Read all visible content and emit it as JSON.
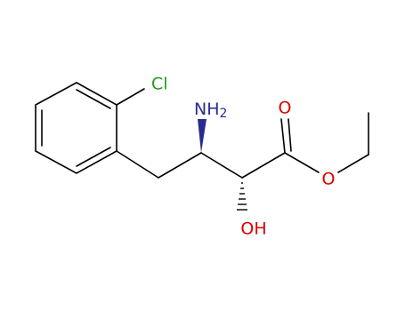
{
  "atoms": {
    "chlorine": "Cl",
    "amine": {
      "main": "NH",
      "sub": "2"
    },
    "carbonyl_oxygen": "O",
    "ester_oxygen": "O",
    "hydroxyl": "OH"
  }
}
